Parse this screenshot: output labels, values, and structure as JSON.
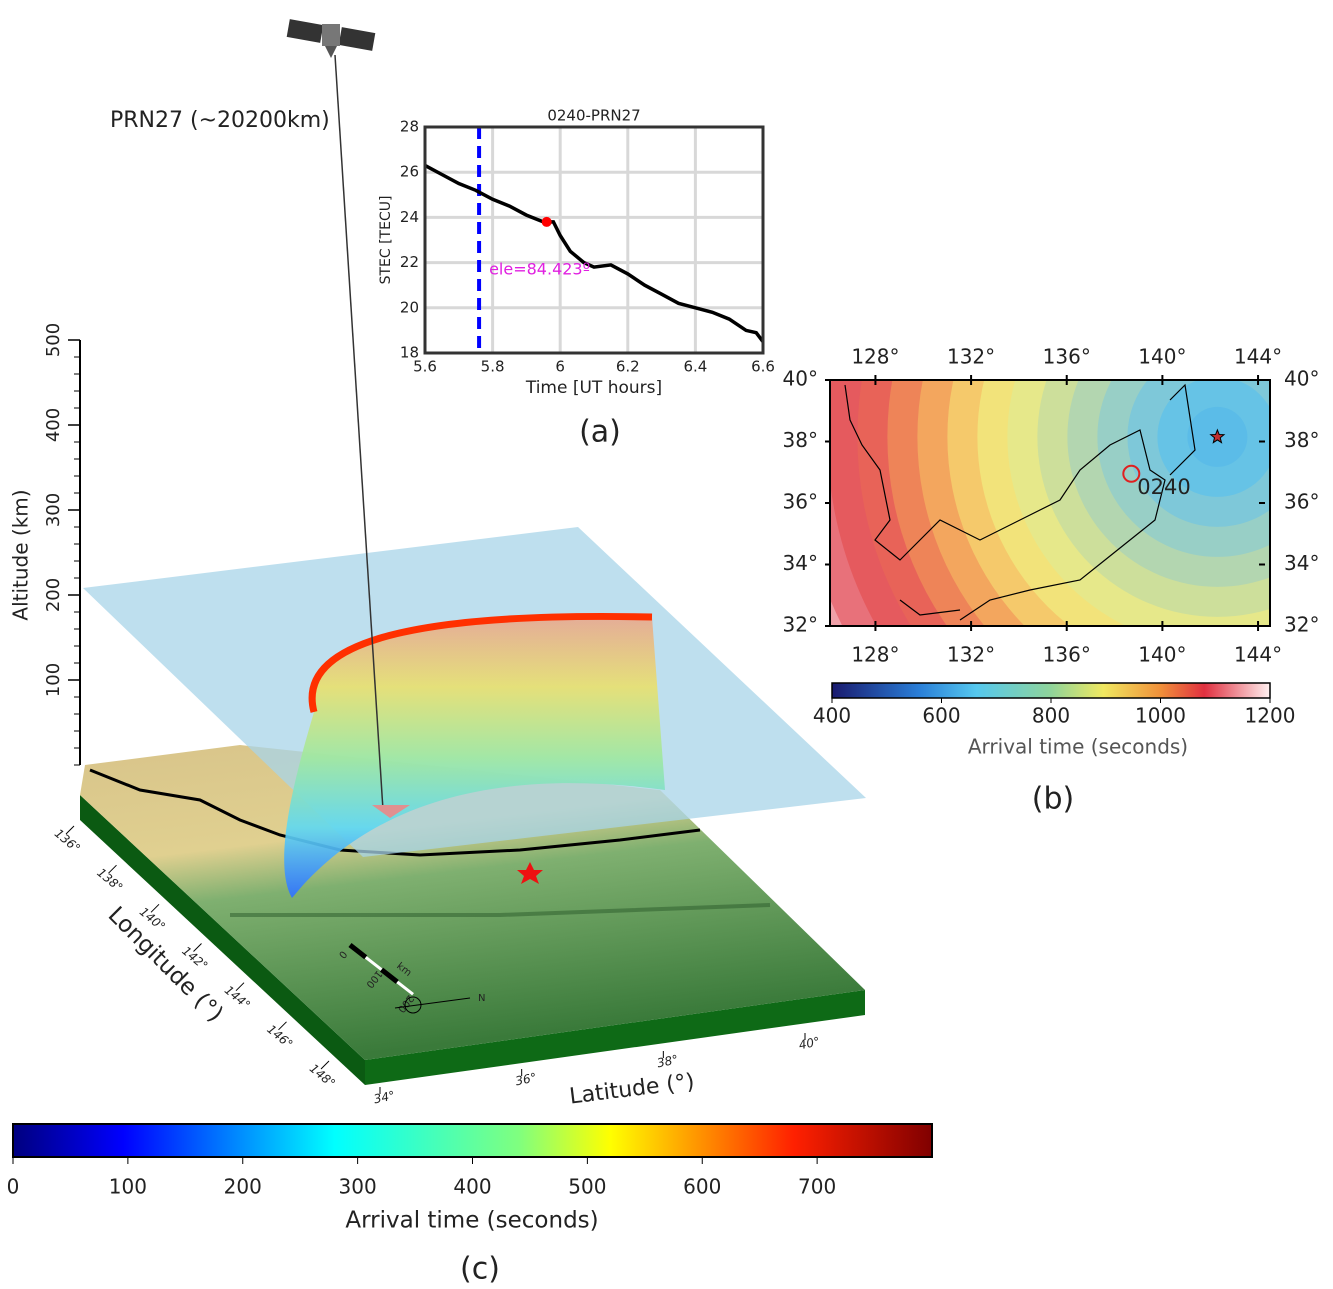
{
  "chart_data": [
    {
      "type": "line",
      "title": "0240-PRN27",
      "x_label": "Time [UT hours]",
      "y_label": "STEC [TECU]",
      "x": [
        5.6,
        5.65,
        5.7,
        5.75,
        5.8,
        5.85,
        5.9,
        5.95,
        5.98,
        6.0,
        6.03,
        6.07,
        6.1,
        6.15,
        6.2,
        6.25,
        6.3,
        6.35,
        6.4,
        6.45,
        6.5,
        6.55,
        6.58,
        6.6
      ],
      "values": [
        26.3,
        25.9,
        25.5,
        25.2,
        24.8,
        24.5,
        24.1,
        23.8,
        23.8,
        23.2,
        22.5,
        22.0,
        21.8,
        21.9,
        21.5,
        21.0,
        20.6,
        20.2,
        20.0,
        19.8,
        19.5,
        19.0,
        18.9,
        18.5
      ],
      "color": "#000000",
      "xlim": [
        5.6,
        6.6
      ],
      "ylim": [
        18,
        28
      ],
      "xticks": [
        5.6,
        5.8,
        6,
        6.2,
        6.4,
        6.6
      ],
      "yticks": [
        18,
        20,
        22,
        24,
        26,
        28
      ],
      "grid": true,
      "vline": {
        "x": 5.76,
        "color": "#0000ff"
      },
      "marker": {
        "x": 5.96,
        "y": 23.8,
        "color": "#ff0000"
      },
      "annotation": "ele=84.423º",
      "panel_label": "(a)"
    },
    {
      "type": "map",
      "xlim": [
        126.1,
        144.5
      ],
      "ylim": [
        32,
        40
      ],
      "xticks": [
        {
          "value": 128,
          "label": "128°"
        },
        {
          "value": 132,
          "label": "132°"
        },
        {
          "value": 136,
          "label": "136°"
        },
        {
          "value": 140,
          "label": "140°"
        },
        {
          "value": 144,
          "label": "144°"
        }
      ],
      "yticks": [
        {
          "value": 32,
          "label": "32°"
        },
        {
          "value": 34,
          "label": "34°"
        },
        {
          "value": 36,
          "label": "36°"
        },
        {
          "value": 38,
          "label": "38°"
        },
        {
          "value": 40,
          "label": "40°"
        }
      ],
      "epicenter": {
        "lon": 142.3,
        "lat": 38.15
      },
      "station": {
        "name": "0240",
        "lon": 138.7,
        "lat": 36.95
      },
      "colorbar": {
        "label": "Arrival time (seconds)",
        "lim": [
          400,
          1200
        ],
        "ticks": [
          400,
          600,
          800,
          1000,
          1200
        ]
      },
      "panel_label": "(b)"
    },
    {
      "type": "3d",
      "annotation": "PRN27 (~20200km)",
      "z_label": "Altitude (km)",
      "zlim": [
        0,
        500
      ],
      "zticks": [
        100,
        200,
        300,
        400,
        500
      ],
      "x_label": "Longitude (°)",
      "xlim": [
        136,
        148
      ],
      "xticks": [
        {
          "value": 136,
          "label": "136°"
        },
        {
          "value": 138,
          "label": "138°"
        },
        {
          "value": 140,
          "label": "140°"
        },
        {
          "value": 142,
          "label": "142°"
        },
        {
          "value": 144,
          "label": "144°"
        },
        {
          "value": 146,
          "label": "146°"
        },
        {
          "value": 148,
          "label": "148°"
        }
      ],
      "y_label": "Latitude (°)",
      "ylim": [
        34,
        40
      ],
      "yticks": [
        {
          "value": 34,
          "label": "34°"
        },
        {
          "value": 36,
          "label": "36°"
        },
        {
          "value": 38,
          "label": "38°"
        },
        {
          "value": 40,
          "label": "40°"
        }
      ],
      "scale_bar": {
        "unit": "km",
        "ticks": [
          0,
          100,
          200
        ]
      },
      "north": "N",
      "colorbar": {
        "label": "Arrival time (seconds)",
        "lim": [
          0,
          800
        ],
        "ticks": [
          0,
          100,
          200,
          300,
          400,
          500,
          600,
          700
        ]
      },
      "panel_label": "(c)"
    }
  ]
}
